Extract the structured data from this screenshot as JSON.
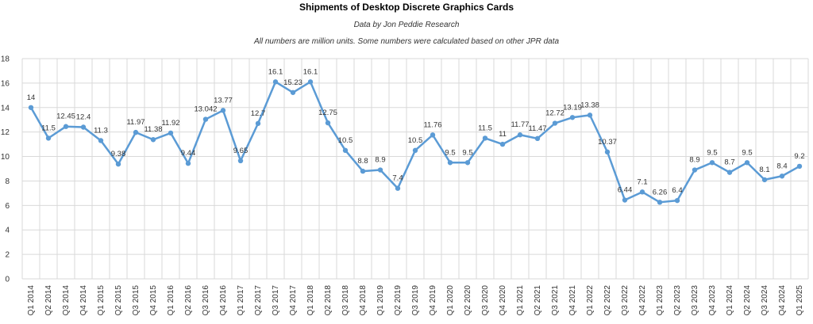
{
  "chart_data": {
    "type": "line",
    "title": "Shipments of Desktop Discrete Graphics Cards",
    "subtitle": "Data by Jon Peddie Research",
    "note": "All numbers are million units. Some numbers were calculated based on other JPR data",
    "categories": [
      "Q1 2014",
      "Q2 2014",
      "Q3 2014",
      "Q4 2014",
      "Q1 2015",
      "Q2 2015",
      "Q3 2015",
      "Q4 2015",
      "Q1 2016",
      "Q2 2016",
      "Q3 2016",
      "Q4 2016",
      "Q1 2017",
      "Q2 2017",
      "Q3 2017",
      "Q4 2017",
      "Q1 2018",
      "Q2 2018",
      "Q3 2018",
      "Q4 2018",
      "Q1 2019",
      "Q2 2019",
      "Q3 2019",
      "Q4 2019",
      "Q1 2020",
      "Q2 2020",
      "Q3 2020",
      "Q4 2020",
      "Q1 2021",
      "Q2 2021",
      "Q3 2021",
      "Q4 2021",
      "Q1 2022",
      "Q2 2022",
      "Q3 2022",
      "Q4 2022",
      "Q1 2023",
      "Q2 2023",
      "Q3 2023",
      "Q4 2023",
      "Q1 2024",
      "Q2 2024",
      "Q3 2024",
      "Q4 2024",
      "Q1 2025"
    ],
    "series": [
      {
        "values": [
          14,
          11.5,
          12.45,
          12.4,
          11.3,
          9.38,
          11.97,
          11.38,
          11.92,
          9.44,
          13.042,
          13.77,
          9.65,
          12.7,
          16.1,
          15.23,
          16.1,
          12.75,
          10.5,
          8.8,
          8.9,
          7.4,
          10.5,
          11.76,
          9.5,
          9.5,
          11.5,
          11,
          11.77,
          11.47,
          12.72,
          13.19,
          13.38,
          10.37,
          6.44,
          7.1,
          6.26,
          6.4,
          8.9,
          9.5,
          8.7,
          9.5,
          8.1,
          8.4,
          9.2
        ],
        "labels": [
          "14",
          "11.5",
          "12.45",
          "12.4",
          "11.3",
          "9.38",
          "11.97",
          "11.38",
          "11.92",
          "9.44",
          "13.042",
          "13.77",
          "9.65",
          "12.7",
          "16.1",
          "15.23",
          "16.1",
          "12.75",
          "10.5",
          "8.8",
          "8.9",
          "7.4",
          "10.5",
          "11.76",
          "9.5",
          "9.5",
          "11.5",
          "11",
          "11.77",
          "11.47",
          "12.72",
          "13.19",
          "13.38",
          "10.37",
          "6.44",
          "7.1",
          "6.26",
          "6.4",
          "8.9",
          "9.5",
          "8.7",
          "9.5",
          "8.1",
          "8.4",
          "9.2"
        ]
      }
    ],
    "ylim": [
      0,
      18
    ],
    "yticks": [
      "0",
      "2",
      "4",
      "6",
      "8",
      "10",
      "12",
      "14",
      "16",
      "18"
    ],
    "grid": true,
    "legend": "none",
    "line_color": "#5b9bd5",
    "grid_color": "#d9d9d9"
  }
}
